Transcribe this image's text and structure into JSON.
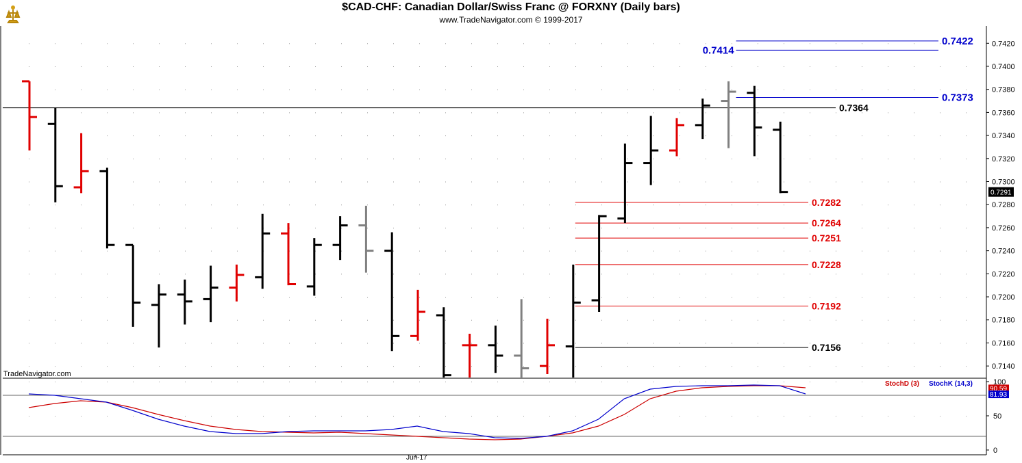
{
  "header": {
    "title": "$CAD-CHF:  Canadian Dollar/Swiss Franc @ FORXNY  (Daily bars)",
    "subtitle": "www.TradeNavigator.com © 1999-2017"
  },
  "watermark": "TradeNavigator.com",
  "colors": {
    "up_bar": "#000000",
    "down_bar": "#e00000",
    "neutral_bar": "#808080",
    "level_blue": "#0000cc",
    "level_red": "#e00000",
    "level_black": "#000000",
    "stoch_k": "#0000cc",
    "stoch_d": "#cc0000"
  },
  "chart_data": [
    {
      "type": "ohlc",
      "title": "$CAD-CHF:  Canadian Dollar/Swiss Franc @ FORXNY  (Daily bars)",
      "x_labels": [
        "Jun-17"
      ],
      "ylim": [
        0.713,
        0.7435
      ],
      "y_ticks": [
        "0.7140",
        "0.7160",
        "0.7180",
        "0.7200",
        "0.7220",
        "0.7240",
        "0.7260",
        "0.7280",
        "0.7300",
        "0.7320",
        "0.7340",
        "0.7360",
        "0.7380",
        "0.7400",
        "0.7420"
      ],
      "last_price": "0.7291",
      "bars": [
        {
          "o": 0.7387,
          "h": 0.7387,
          "l": 0.7327,
          "c": 0.7356,
          "color": "down"
        },
        {
          "o": 0.735,
          "h": 0.7364,
          "l": 0.7282,
          "c": 0.7296,
          "color": "up"
        },
        {
          "o": 0.7295,
          "h": 0.7342,
          "l": 0.729,
          "c": 0.7309,
          "color": "down"
        },
        {
          "o": 0.7309,
          "h": 0.7312,
          "l": 0.7242,
          "c": 0.7245,
          "color": "up"
        },
        {
          "o": 0.7245,
          "h": 0.7245,
          "l": 0.7174,
          "c": 0.7195,
          "color": "up"
        },
        {
          "o": 0.7193,
          "h": 0.7211,
          "l": 0.7156,
          "c": 0.7202,
          "color": "up"
        },
        {
          "o": 0.7202,
          "h": 0.7215,
          "l": 0.7176,
          "c": 0.7196,
          "color": "up"
        },
        {
          "o": 0.7198,
          "h": 0.7227,
          "l": 0.7178,
          "c": 0.7208,
          "color": "up"
        },
        {
          "o": 0.7208,
          "h": 0.7228,
          "l": 0.7196,
          "c": 0.7219,
          "color": "down"
        },
        {
          "o": 0.7217,
          "h": 0.7272,
          "l": 0.7207,
          "c": 0.7255,
          "color": "up"
        },
        {
          "o": 0.7255,
          "h": 0.7264,
          "l": 0.721,
          "c": 0.7211,
          "color": "down"
        },
        {
          "o": 0.7209,
          "h": 0.7251,
          "l": 0.7201,
          "c": 0.7245,
          "color": "up"
        },
        {
          "o": 0.7245,
          "h": 0.727,
          "l": 0.7232,
          "c": 0.7262,
          "color": "up"
        },
        {
          "o": 0.7262,
          "h": 0.7279,
          "l": 0.7221,
          "c": 0.724,
          "color": "neutral"
        },
        {
          "o": 0.724,
          "h": 0.7256,
          "l": 0.7153,
          "c": 0.7166,
          "color": "up"
        },
        {
          "o": 0.7166,
          "h": 0.7206,
          "l": 0.7162,
          "c": 0.7187,
          "color": "down"
        },
        {
          "o": 0.7184,
          "h": 0.7191,
          "l": 0.713,
          "c": 0.7132,
          "color": "up"
        },
        {
          "o": 0.7158,
          "h": 0.7168,
          "l": 0.713,
          "c": 0.7158,
          "color": "down"
        },
        {
          "o": 0.7158,
          "h": 0.7175,
          "l": 0.7134,
          "c": 0.7149,
          "color": "up"
        },
        {
          "o": 0.7149,
          "h": 0.7198,
          "l": 0.713,
          "c": 0.7138,
          "color": "neutral"
        },
        {
          "o": 0.714,
          "h": 0.7181,
          "l": 0.7133,
          "c": 0.7158,
          "color": "down"
        },
        {
          "o": 0.7157,
          "h": 0.7228,
          "l": 0.713,
          "c": 0.7195,
          "color": "up"
        },
        {
          "o": 0.7197,
          "h": 0.7271,
          "l": 0.7187,
          "c": 0.727,
          "color": "up"
        },
        {
          "o": 0.7268,
          "h": 0.7333,
          "l": 0.7264,
          "c": 0.7316,
          "color": "up"
        },
        {
          "o": 0.7316,
          "h": 0.7357,
          "l": 0.7297,
          "c": 0.7327,
          "color": "up"
        },
        {
          "o": 0.7327,
          "h": 0.7355,
          "l": 0.7322,
          "c": 0.7349,
          "color": "down"
        },
        {
          "o": 0.7349,
          "h": 0.7372,
          "l": 0.7337,
          "c": 0.7366,
          "color": "up"
        },
        {
          "o": 0.737,
          "h": 0.7387,
          "l": 0.7329,
          "c": 0.7378,
          "color": "neutral"
        },
        {
          "o": 0.7377,
          "h": 0.7383,
          "l": 0.7322,
          "c": 0.7347,
          "color": "up"
        },
        {
          "o": 0.7345,
          "h": 0.7352,
          "l": 0.729,
          "c": 0.7291,
          "color": "up"
        }
      ],
      "levels": [
        {
          "value": 0.7422,
          "label": "0.7422",
          "color": "blue",
          "start_bar": 27,
          "label_side": "right"
        },
        {
          "value": 0.7414,
          "label": "0.7414",
          "color": "blue",
          "start_bar": 27,
          "label_side": "left"
        },
        {
          "value": 0.7373,
          "label": "0.7373",
          "color": "blue",
          "start_bar": 27,
          "label_side": "right"
        },
        {
          "value": 0.7364,
          "label": "0.7364",
          "color": "black",
          "start_bar": -1,
          "label_side": "right"
        },
        {
          "value": 0.7282,
          "label": "0.7282",
          "color": "red",
          "start_bar": 21,
          "label_side": "right"
        },
        {
          "value": 0.7264,
          "label": "0.7264",
          "color": "red",
          "start_bar": 21,
          "label_side": "right"
        },
        {
          "value": 0.7251,
          "label": "0.7251",
          "color": "red",
          "start_bar": 21,
          "label_side": "right"
        },
        {
          "value": 0.7228,
          "label": "0.7228",
          "color": "red",
          "start_bar": 21,
          "label_side": "right"
        },
        {
          "value": 0.7192,
          "label": "0.7192",
          "color": "red",
          "start_bar": 21,
          "label_side": "right"
        },
        {
          "value": 0.7156,
          "label": "0.7156",
          "color": "black",
          "start_bar": 21,
          "label_side": "right"
        }
      ]
    },
    {
      "type": "line",
      "legend": [
        "StochD (3)",
        "StochK (14,3)"
      ],
      "ylim": [
        0,
        100
      ],
      "y_ticks": [
        "0",
        "50",
        "100"
      ],
      "reference_lines": [
        80,
        20
      ],
      "last_values": {
        "StochD (3)": "90.59",
        "StochK (14,3)": "81.93"
      },
      "series": [
        {
          "name": "StochD (3)",
          "values": [
            62,
            68,
            72,
            70,
            62,
            52,
            43,
            35,
            30,
            27,
            26,
            25,
            26,
            24,
            22,
            20,
            18,
            16,
            15,
            16,
            20,
            25,
            35,
            52,
            75,
            86,
            91,
            93,
            94,
            94,
            91
          ]
        },
        {
          "name": "StochK (14,3)",
          "values": [
            82,
            80,
            75,
            70,
            58,
            45,
            35,
            27,
            24,
            24,
            27,
            28,
            28,
            28,
            30,
            35,
            27,
            24,
            18,
            17,
            20,
            28,
            45,
            75,
            89,
            93,
            94,
            94,
            95,
            94,
            82
          ]
        }
      ]
    }
  ]
}
